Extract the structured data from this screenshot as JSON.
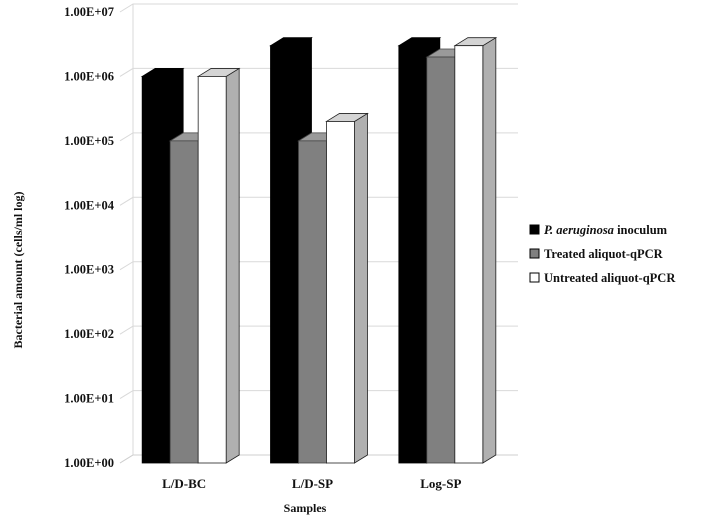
{
  "chart_data": {
    "type": "bar",
    "title": "",
    "xlabel": "Samples",
    "ylabel": "Bacterial amount (cells/ml log)",
    "yscale": "log",
    "ylim": [
      1,
      10000000
    ],
    "ytick_labels": [
      "1.00E+00",
      "1.00E+01",
      "1.00E+02",
      "1.00E+03",
      "1.00E+04",
      "1.00E+05",
      "1.00E+06",
      "1.00E+07"
    ],
    "grid": true,
    "legend_position": "right",
    "categories": [
      "L/D-BC",
      "L/D-SP",
      "Log-SP"
    ],
    "series": [
      {
        "name": "inoculum",
        "name_italic_prefix": "P. aeruginosa",
        "color": "#000000",
        "values": [
          1000000,
          3000000,
          3000000
        ]
      },
      {
        "name": "Treated aliquot-qPCR",
        "color": "#808080",
        "values": [
          100000,
          100000,
          2000000
        ]
      },
      {
        "name": "Untreated aliquot-qPCR",
        "color": "#ffffff",
        "values": [
          1000000,
          200000,
          3000000
        ]
      }
    ]
  }
}
